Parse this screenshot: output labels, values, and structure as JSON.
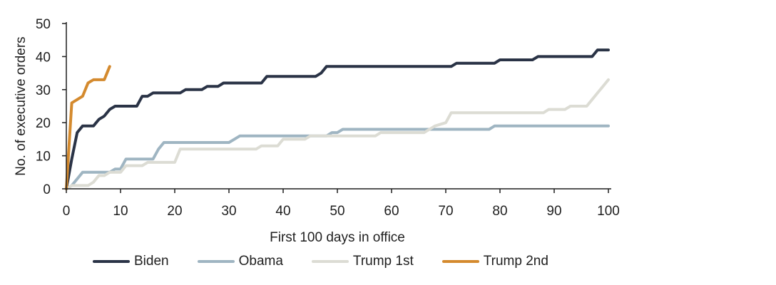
{
  "chart_data": {
    "type": "line",
    "title": "",
    "xlabel": "First 100 days in office",
    "ylabel": "No. of executive orders",
    "xlim": [
      0,
      100
    ],
    "ylim": [
      0,
      50
    ],
    "xticks": [
      0,
      10,
      20,
      30,
      40,
      50,
      60,
      70,
      80,
      90,
      100
    ],
    "yticks": [
      0,
      10,
      20,
      30,
      40,
      50
    ],
    "grid": false,
    "legend_position": "bottom",
    "series": [
      {
        "name": "Biden",
        "color": "#2a3346",
        "points": [
          [
            0,
            0
          ],
          [
            1,
            9
          ],
          [
            2,
            17
          ],
          [
            3,
            19
          ],
          [
            5,
            19
          ],
          [
            6,
            21
          ],
          [
            7,
            22
          ],
          [
            8,
            24
          ],
          [
            9,
            25
          ],
          [
            13,
            25
          ],
          [
            14,
            28
          ],
          [
            15,
            28
          ],
          [
            16,
            29
          ],
          [
            21,
            29
          ],
          [
            22,
            30
          ],
          [
            25,
            30
          ],
          [
            26,
            31
          ],
          [
            28,
            31
          ],
          [
            29,
            32
          ],
          [
            36,
            32
          ],
          [
            37,
            34
          ],
          [
            46,
            34
          ],
          [
            47,
            35
          ],
          [
            48,
            37
          ],
          [
            71,
            37
          ],
          [
            72,
            38
          ],
          [
            79,
            38
          ],
          [
            80,
            39
          ],
          [
            86,
            39
          ],
          [
            87,
            40
          ],
          [
            97,
            40
          ],
          [
            98,
            42
          ],
          [
            100,
            42
          ]
        ]
      },
      {
        "name": "Obama",
        "color": "#9fb5c2",
        "points": [
          [
            0,
            0
          ],
          [
            1,
            1
          ],
          [
            2,
            3
          ],
          [
            3,
            5
          ],
          [
            8,
            5
          ],
          [
            9,
            6
          ],
          [
            10,
            6
          ],
          [
            11,
            9
          ],
          [
            16,
            9
          ],
          [
            17,
            12
          ],
          [
            18,
            14
          ],
          [
            30,
            14
          ],
          [
            31,
            15
          ],
          [
            32,
            16
          ],
          [
            48,
            16
          ],
          [
            49,
            17
          ],
          [
            50,
            17
          ],
          [
            51,
            18
          ],
          [
            78,
            18
          ],
          [
            79,
            19
          ],
          [
            100,
            19
          ]
        ]
      },
      {
        "name": "Trump 1st",
        "color": "#dcdcd4",
        "points": [
          [
            0,
            0
          ],
          [
            1,
            1
          ],
          [
            4,
            1
          ],
          [
            5,
            2
          ],
          [
            6,
            4
          ],
          [
            7,
            4
          ],
          [
            8,
            5
          ],
          [
            10,
            5
          ],
          [
            11,
            7
          ],
          [
            14,
            7
          ],
          [
            15,
            8
          ],
          [
            20,
            8
          ],
          [
            21,
            12
          ],
          [
            35,
            12
          ],
          [
            36,
            13
          ],
          [
            39,
            13
          ],
          [
            40,
            15
          ],
          [
            44,
            15
          ],
          [
            45,
            16
          ],
          [
            57,
            16
          ],
          [
            58,
            17
          ],
          [
            66,
            17
          ],
          [
            68,
            19
          ],
          [
            70,
            20
          ],
          [
            71,
            23
          ],
          [
            88,
            23
          ],
          [
            89,
            24
          ],
          [
            92,
            24
          ],
          [
            93,
            25
          ],
          [
            96,
            25
          ],
          [
            97,
            27
          ],
          [
            98,
            29
          ],
          [
            99,
            31
          ],
          [
            100,
            33
          ]
        ]
      },
      {
        "name": "Trump 2nd",
        "color": "#d48a2e",
        "points": [
          [
            0,
            0
          ],
          [
            1,
            26
          ],
          [
            3,
            28
          ],
          [
            4,
            32
          ],
          [
            5,
            33
          ],
          [
            7,
            33
          ],
          [
            8,
            37
          ]
        ]
      }
    ]
  }
}
